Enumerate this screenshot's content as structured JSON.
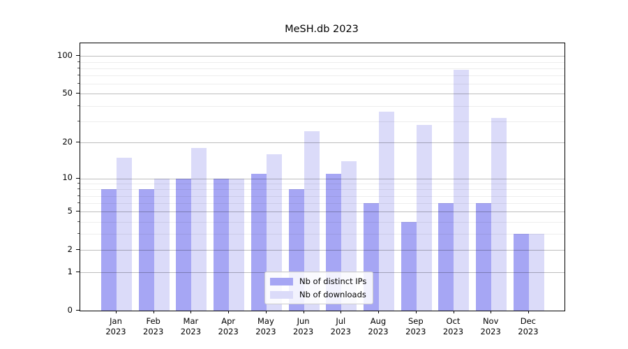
{
  "title": "MeSH.db 2023",
  "chart_data": {
    "type": "bar",
    "title": "MeSH.db 2023",
    "categories": [
      "Jan 2023",
      "Feb 2023",
      "Mar 2023",
      "Apr 2023",
      "May 2023",
      "Jun 2023",
      "Jul 2023",
      "Aug 2023",
      "Sep 2023",
      "Oct 2023",
      "Nov 2023",
      "Dec 2023"
    ],
    "category_lines": [
      {
        "month": "Jan",
        "year": "2023"
      },
      {
        "month": "Feb",
        "year": "2023"
      },
      {
        "month": "Mar",
        "year": "2023"
      },
      {
        "month": "Apr",
        "year": "2023"
      },
      {
        "month": "May",
        "year": "2023"
      },
      {
        "month": "Jun",
        "year": "2023"
      },
      {
        "month": "Jul",
        "year": "2023"
      },
      {
        "month": "Aug",
        "year": "2023"
      },
      {
        "month": "Sep",
        "year": "2023"
      },
      {
        "month": "Oct",
        "year": "2023"
      },
      {
        "month": "Nov",
        "year": "2023"
      },
      {
        "month": "Dec",
        "year": "2023"
      }
    ],
    "series": [
      {
        "name": "Nb of distinct IPs",
        "color": "#a6a6f4",
        "values": [
          8,
          8,
          10,
          10,
          11,
          8,
          11,
          6,
          4,
          6,
          6,
          3
        ]
      },
      {
        "name": "Nb of downloads",
        "color": "#dbdbf9",
        "values": [
          15,
          10,
          18,
          10,
          16,
          25,
          14,
          36,
          28,
          78,
          32,
          3
        ]
      }
    ],
    "xlabel": "",
    "ylabel": "",
    "yscale": "log1p",
    "yticks": [
      0,
      1,
      2,
      5,
      10,
      20,
      50,
      100
    ],
    "minor_yticks": [
      3,
      4,
      6,
      7,
      8,
      9,
      30,
      40,
      60,
      70,
      80,
      90
    ],
    "ylim": [
      0,
      126
    ],
    "grid": true,
    "legend_position": "lower center"
  },
  "colors": {
    "major_grid": "#b9b9b9",
    "minor_grid": "#ececec",
    "axis": "#000000",
    "background": "#ffffff"
  }
}
